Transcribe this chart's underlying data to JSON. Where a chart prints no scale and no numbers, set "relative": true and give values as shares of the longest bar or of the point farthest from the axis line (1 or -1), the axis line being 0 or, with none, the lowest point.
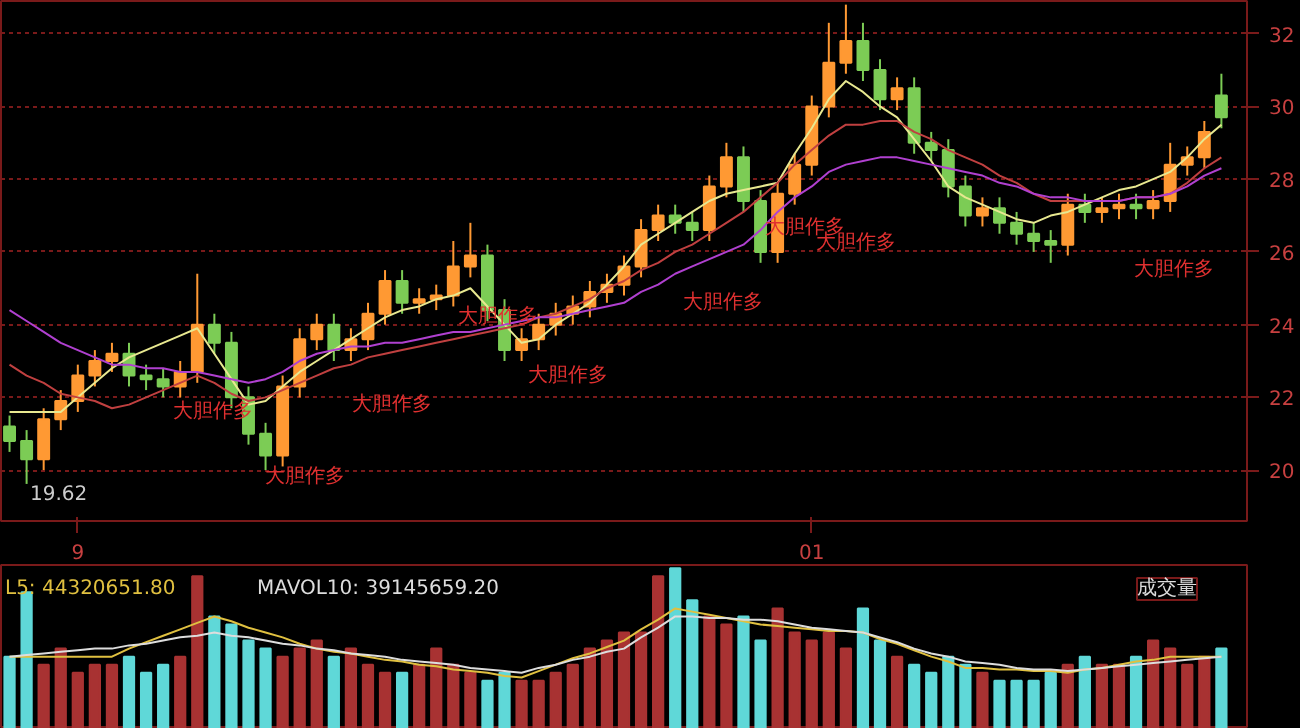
{
  "chart_data": [
    {
      "type": "candlestick",
      "categories": [
        null,
        null,
        null,
        null,
        "9",
        null,
        null,
        null,
        null,
        null,
        null,
        null,
        null,
        null,
        null,
        null,
        null,
        null,
        null,
        null,
        null,
        null,
        null,
        null,
        null,
        null,
        null,
        null,
        null,
        null,
        null,
        null,
        null,
        null,
        null,
        null,
        null,
        null,
        null,
        null,
        null,
        null,
        null,
        null,
        null,
        null,
        null,
        "01",
        null,
        null,
        null,
        null,
        null,
        null,
        null,
        null,
        null,
        null,
        null,
        null,
        null,
        null,
        null,
        null,
        null,
        null,
        null,
        null,
        null,
        null,
        null,
        null
      ],
      "ohlc": [
        [
          21.2,
          21.5,
          20.5,
          20.8
        ],
        [
          20.8,
          21.1,
          19.62,
          20.3
        ],
        [
          20.3,
          21.7,
          20.0,
          21.4
        ],
        [
          21.4,
          22.2,
          21.1,
          21.9
        ],
        [
          21.9,
          22.9,
          21.6,
          22.6
        ],
        [
          22.6,
          23.3,
          22.3,
          23.0
        ],
        [
          23.0,
          23.5,
          22.7,
          23.2
        ],
        [
          23.2,
          23.5,
          22.3,
          22.6
        ],
        [
          22.6,
          22.9,
          22.2,
          22.5
        ],
        [
          22.5,
          22.8,
          22.0,
          22.3
        ],
        [
          22.3,
          23.0,
          22.0,
          22.7
        ],
        [
          22.7,
          25.4,
          22.4,
          24.0
        ],
        [
          24.0,
          24.3,
          23.2,
          23.5
        ],
        [
          23.5,
          23.8,
          21.7,
          22.0
        ],
        [
          22.0,
          22.3,
          20.7,
          21.0
        ],
        [
          21.0,
          21.3,
          20.0,
          20.4
        ],
        [
          20.4,
          22.6,
          20.1,
          22.3
        ],
        [
          22.3,
          23.9,
          22.0,
          23.6
        ],
        [
          23.6,
          24.3,
          23.3,
          24.0
        ],
        [
          24.0,
          24.3,
          23.0,
          23.3
        ],
        [
          23.3,
          23.9,
          23.0,
          23.6
        ],
        [
          23.6,
          24.6,
          23.3,
          24.3
        ],
        [
          24.3,
          25.5,
          24.0,
          25.2
        ],
        [
          25.2,
          25.5,
          24.3,
          24.6
        ],
        [
          24.6,
          25.0,
          24.3,
          24.7
        ],
        [
          24.7,
          25.1,
          24.4,
          24.8
        ],
        [
          24.8,
          26.3,
          24.5,
          25.6
        ],
        [
          25.6,
          26.8,
          25.3,
          25.9
        ],
        [
          25.9,
          26.2,
          24.1,
          24.4
        ],
        [
          24.4,
          24.7,
          23.0,
          23.3
        ],
        [
          23.3,
          23.9,
          23.0,
          23.6
        ],
        [
          23.6,
          24.3,
          23.3,
          24.0
        ],
        [
          24.0,
          24.6,
          23.7,
          24.3
        ],
        [
          24.3,
          24.8,
          24.0,
          24.5
        ],
        [
          24.5,
          25.2,
          24.2,
          24.9
        ],
        [
          24.9,
          25.4,
          24.6,
          25.1
        ],
        [
          25.1,
          25.9,
          24.8,
          25.6
        ],
        [
          25.6,
          26.9,
          25.3,
          26.6
        ],
        [
          26.6,
          27.3,
          26.3,
          27.0
        ],
        [
          27.0,
          27.3,
          26.5,
          26.8
        ],
        [
          26.8,
          27.1,
          26.3,
          26.6
        ],
        [
          26.6,
          28.1,
          26.3,
          27.8
        ],
        [
          27.8,
          29.0,
          27.5,
          28.6
        ],
        [
          28.6,
          28.9,
          27.1,
          27.4
        ],
        [
          27.4,
          27.7,
          25.7,
          26.0
        ],
        [
          26.0,
          27.9,
          25.7,
          27.6
        ],
        [
          27.6,
          28.7,
          27.3,
          28.4
        ],
        [
          28.4,
          30.3,
          28.1,
          30.0
        ],
        [
          30.0,
          32.3,
          29.7,
          31.2
        ],
        [
          31.2,
          32.8,
          30.9,
          31.8
        ],
        [
          31.8,
          32.3,
          30.7,
          31.0
        ],
        [
          31.0,
          31.3,
          29.9,
          30.2
        ],
        [
          30.2,
          30.8,
          29.9,
          30.5
        ],
        [
          30.5,
          30.8,
          28.7,
          29.0
        ],
        [
          29.0,
          29.3,
          28.5,
          28.8
        ],
        [
          28.8,
          29.1,
          27.5,
          27.8
        ],
        [
          27.8,
          28.1,
          26.7,
          27.0
        ],
        [
          27.0,
          27.5,
          26.7,
          27.2
        ],
        [
          27.2,
          27.5,
          26.5,
          26.8
        ],
        [
          26.8,
          27.1,
          26.2,
          26.5
        ],
        [
          26.5,
          26.8,
          26.0,
          26.3
        ],
        [
          26.3,
          26.6,
          25.7,
          26.2
        ],
        [
          26.2,
          27.6,
          25.9,
          27.3
        ],
        [
          27.3,
          27.6,
          26.8,
          27.1
        ],
        [
          27.1,
          27.5,
          26.8,
          27.2
        ],
        [
          27.2,
          27.6,
          26.9,
          27.3
        ],
        [
          27.3,
          27.6,
          26.9,
          27.2
        ],
        [
          27.2,
          27.7,
          26.9,
          27.4
        ],
        [
          27.4,
          29.0,
          27.1,
          28.4
        ],
        [
          28.4,
          28.9,
          28.1,
          28.6
        ],
        [
          28.6,
          29.6,
          28.3,
          29.3
        ],
        [
          30.3,
          30.9,
          29.4,
          29.7
        ]
      ],
      "colors": [
        "#7ccc55",
        "#7ccc55",
        "#ff9933",
        "#ff9933",
        "#ff9933",
        "#ff9933",
        "#ff9933",
        "#7ccc55",
        "#7ccc55",
        "#7ccc55",
        "#ff9933",
        "#ff9933",
        "#7ccc55",
        "#7ccc55",
        "#7ccc55",
        "#7ccc55",
        "#ff9933",
        "#ff9933",
        "#ff9933",
        "#7ccc55",
        "#ff9933",
        "#ff9933",
        "#ff9933",
        "#7ccc55",
        "#ff9933",
        "#ff9933",
        "#ff9933",
        "#ff9933",
        "#7ccc55",
        "#7ccc55",
        "#ff9933",
        "#ff9933",
        "#ff9933",
        "#ff9933",
        "#ff9933",
        "#ff9933",
        "#ff9933",
        "#ff9933",
        "#ff9933",
        "#7ccc55",
        "#7ccc55",
        "#ff9933",
        "#ff9933",
        "#7ccc55",
        "#7ccc55",
        "#ff9933",
        "#ff9933",
        "#ff9933",
        "#ff9933",
        "#ff9933",
        "#7ccc55",
        "#7ccc55",
        "#ff9933",
        "#7ccc55",
        "#7ccc55",
        "#7ccc55",
        "#7ccc55",
        "#ff9933",
        "#7ccc55",
        "#7ccc55",
        "#7ccc55",
        "#7ccc55",
        "#ff9933",
        "#7ccc55",
        "#ff9933",
        "#ff9933",
        "#7ccc55",
        "#ff9933",
        "#ff9933",
        "#ff9933",
        "#ff9933",
        "#7ccc55"
      ],
      "series": [
        {
          "type": "line",
          "color": "#e8e890",
          "values": [
            21.6,
            21.6,
            21.6,
            21.6,
            22.0,
            22.4,
            22.8,
            23.1,
            23.3,
            23.5,
            23.7,
            23.9,
            23.2,
            22.5,
            21.8,
            21.9,
            22.3,
            22.7,
            23.0,
            23.3,
            23.6,
            23.9,
            24.2,
            24.4,
            24.5,
            24.7,
            24.8,
            25.0,
            24.5,
            24.0,
            23.5,
            23.6,
            24.0,
            24.3,
            24.6,
            25.1,
            25.6,
            26.2,
            26.5,
            26.8,
            27.1,
            27.4,
            27.6,
            27.7,
            27.8,
            27.9,
            28.7,
            29.4,
            30.2,
            30.7,
            30.4,
            30.0,
            29.7,
            29.1,
            28.5,
            27.8,
            27.5,
            27.3,
            27.1,
            26.9,
            26.8,
            27.0,
            27.1,
            27.3,
            27.5,
            27.7,
            27.8,
            28.0,
            28.2,
            28.6,
            29.1,
            29.5
          ]
        },
        {
          "type": "line",
          "color": "#c04040",
          "values": [
            22.9,
            22.6,
            22.4,
            22.1,
            22.0,
            21.9,
            21.7,
            21.8,
            22.0,
            22.2,
            22.4,
            22.6,
            22.4,
            22.1,
            21.9,
            22.0,
            22.2,
            22.4,
            22.6,
            22.8,
            22.9,
            23.1,
            23.2,
            23.3,
            23.4,
            23.5,
            23.6,
            23.7,
            23.8,
            23.9,
            24.0,
            24.2,
            24.3,
            24.5,
            24.7,
            25.0,
            25.2,
            25.5,
            25.7,
            26.0,
            26.2,
            26.5,
            26.8,
            27.1,
            27.5,
            27.9,
            28.4,
            28.8,
            29.2,
            29.5,
            29.5,
            29.6,
            29.6,
            29.3,
            29.1,
            28.8,
            28.6,
            28.4,
            28.1,
            27.9,
            27.6,
            27.4,
            27.4,
            27.4,
            27.4,
            27.4,
            27.5,
            27.5,
            27.6,
            27.9,
            28.3,
            28.6
          ]
        },
        {
          "type": "line",
          "color": "#b040d0",
          "values": [
            24.4,
            24.1,
            23.8,
            23.5,
            23.3,
            23.1,
            22.9,
            22.9,
            22.8,
            22.8,
            22.7,
            22.7,
            22.6,
            22.5,
            22.4,
            22.5,
            22.7,
            23.0,
            23.2,
            23.3,
            23.4,
            23.4,
            23.5,
            23.5,
            23.6,
            23.7,
            23.8,
            23.8,
            23.9,
            24.0,
            24.1,
            24.2,
            24.2,
            24.3,
            24.4,
            24.5,
            24.6,
            24.9,
            25.1,
            25.4,
            25.6,
            25.8,
            26.0,
            26.2,
            26.6,
            27.1,
            27.5,
            27.8,
            28.2,
            28.4,
            28.5,
            28.6,
            28.6,
            28.5,
            28.4,
            28.3,
            28.2,
            28.1,
            27.9,
            27.8,
            27.6,
            27.5,
            27.5,
            27.4,
            27.4,
            27.4,
            27.5,
            27.5,
            27.6,
            27.8,
            28.1,
            28.3
          ]
        }
      ],
      "ylim": [
        18.6,
        32.9
      ],
      "yticks": [
        20,
        22,
        24,
        26,
        28,
        30,
        32
      ],
      "grid": "y",
      "annotations": [
        "19.62",
        "大胆作多",
        "大胆作多",
        "大胆作多",
        "大胆作多",
        "大胆作多",
        "大胆作多",
        "大胆作多",
        "大胆作多",
        "大胆作多"
      ]
    },
    {
      "type": "bar",
      "relative": true,
      "categories": [
        null,
        null,
        null,
        null,
        null,
        null,
        null,
        null,
        null,
        null,
        null,
        null,
        null,
        null,
        null,
        null,
        null,
        null,
        null,
        null,
        null,
        null,
        null,
        null,
        null,
        null,
        null,
        null,
        null,
        null,
        null,
        null,
        null,
        null,
        null,
        null,
        null,
        null,
        null,
        null,
        null,
        null,
        null,
        null,
        null,
        null,
        null,
        null,
        null,
        null,
        null,
        null,
        null,
        null,
        null,
        null,
        null,
        null,
        null,
        null,
        null,
        null,
        null,
        null,
        null,
        null,
        null,
        null,
        null,
        null,
        null,
        null
      ],
      "values": [
        0.45,
        0.85,
        0.4,
        0.5,
        0.35,
        0.4,
        0.4,
        0.45,
        0.35,
        0.4,
        0.45,
        0.95,
        0.7,
        0.65,
        0.55,
        0.5,
        0.45,
        0.5,
        0.55,
        0.45,
        0.5,
        0.4,
        0.35,
        0.35,
        0.4,
        0.5,
        0.4,
        0.35,
        0.3,
        0.35,
        0.3,
        0.3,
        0.35,
        0.4,
        0.5,
        0.55,
        0.6,
        0.6,
        0.95,
        1.0,
        0.8,
        0.7,
        0.65,
        0.7,
        0.55,
        0.75,
        0.6,
        0.55,
        0.6,
        0.5,
        0.75,
        0.55,
        0.45,
        0.4,
        0.35,
        0.45,
        0.4,
        0.35,
        0.3,
        0.3,
        0.3,
        0.35,
        0.4,
        0.45,
        0.4,
        0.4,
        0.45,
        0.55,
        0.5,
        0.4,
        0.45,
        0.5
      ],
      "colors": [
        "#5fd8d8",
        "#5fd8d8",
        "#a83232",
        "#a83232",
        "#a83232",
        "#a83232",
        "#a83232",
        "#5fd8d8",
        "#5fd8d8",
        "#5fd8d8",
        "#a83232",
        "#a83232",
        "#5fd8d8",
        "#5fd8d8",
        "#5fd8d8",
        "#5fd8d8",
        "#a83232",
        "#a83232",
        "#a83232",
        "#5fd8d8",
        "#a83232",
        "#a83232",
        "#a83232",
        "#5fd8d8",
        "#a83232",
        "#a83232",
        "#a83232",
        "#a83232",
        "#5fd8d8",
        "#5fd8d8",
        "#a83232",
        "#a83232",
        "#a83232",
        "#a83232",
        "#a83232",
        "#a83232",
        "#a83232",
        "#a83232",
        "#a83232",
        "#5fd8d8",
        "#5fd8d8",
        "#a83232",
        "#a83232",
        "#5fd8d8",
        "#5fd8d8",
        "#a83232",
        "#a83232",
        "#a83232",
        "#a83232",
        "#a83232",
        "#5fd8d8",
        "#5fd8d8",
        "#a83232",
        "#5fd8d8",
        "#5fd8d8",
        "#5fd8d8",
        "#5fd8d8",
        "#a83232",
        "#5fd8d8",
        "#5fd8d8",
        "#5fd8d8",
        "#5fd8d8",
        "#a83232",
        "#5fd8d8",
        "#a83232",
        "#a83232",
        "#5fd8d8",
        "#a83232",
        "#a83232",
        "#a83232",
        "#a83232",
        "#5fd8d8"
      ],
      "series": [
        {
          "type": "line",
          "color": "#e0c040",
          "values": [
            0.45,
            0.45,
            0.45,
            0.45,
            0.45,
            0.45,
            0.45,
            0.5,
            0.54,
            0.58,
            0.62,
            0.66,
            0.7,
            0.67,
            0.63,
            0.6,
            0.57,
            0.53,
            0.5,
            0.48,
            0.47,
            0.45,
            0.43,
            0.42,
            0.4,
            0.39,
            0.37,
            0.36,
            0.35,
            0.33,
            0.32,
            0.36,
            0.4,
            0.44,
            0.47,
            0.51,
            0.55,
            0.62,
            0.68,
            0.75,
            0.73,
            0.71,
            0.69,
            0.67,
            0.65,
            0.64,
            0.63,
            0.62,
            0.61,
            0.61,
            0.6,
            0.56,
            0.53,
            0.49,
            0.45,
            0.42,
            0.38,
            0.38,
            0.37,
            0.37,
            0.36,
            0.36,
            0.35,
            0.37,
            0.38,
            0.4,
            0.42,
            0.43,
            0.45,
            0.45,
            0.45,
            0.45
          ]
        },
        {
          "type": "line",
          "color": "#dddddd",
          "values": [
            0.45,
            0.46,
            0.47,
            0.48,
            0.49,
            0.5,
            0.5,
            0.52,
            0.53,
            0.55,
            0.57,
            0.58,
            0.6,
            0.58,
            0.57,
            0.55,
            0.53,
            0.52,
            0.5,
            0.49,
            0.47,
            0.46,
            0.45,
            0.43,
            0.42,
            0.41,
            0.4,
            0.38,
            0.37,
            0.36,
            0.35,
            0.38,
            0.4,
            0.43,
            0.45,
            0.48,
            0.5,
            0.57,
            0.63,
            0.7,
            0.7,
            0.69,
            0.69,
            0.68,
            0.68,
            0.67,
            0.65,
            0.63,
            0.62,
            0.61,
            0.6,
            0.57,
            0.54,
            0.5,
            0.47,
            0.45,
            0.42,
            0.41,
            0.4,
            0.38,
            0.37,
            0.37,
            0.36,
            0.37,
            0.38,
            0.39,
            0.4,
            0.41,
            0.42,
            0.43,
            0.44,
            0.45
          ]
        }
      ],
      "annotations": [
        "L5: 44320651.80",
        "MAVOL10: 39145659.20",
        "成交量"
      ]
    }
  ]
}
